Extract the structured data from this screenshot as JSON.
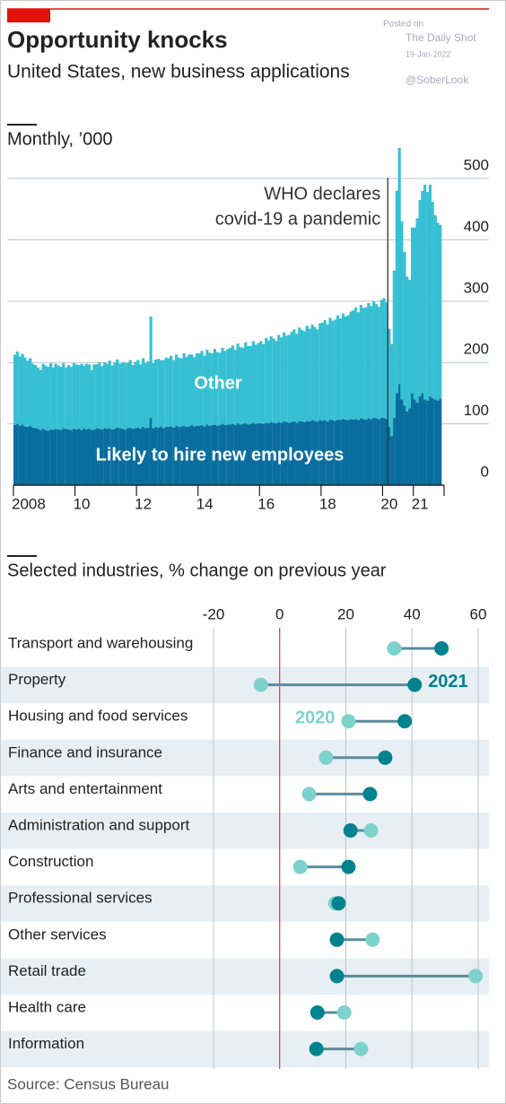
{
  "header": {
    "title": "Opportunity knocks",
    "subtitle": "United States, new business applications"
  },
  "watermark": [
    "Posted on",
    "The Daily Shot",
    "19-Jan-2022",
    "@SoberLook"
  ],
  "source": "Source: Census Bureau",
  "chart_data": [
    {
      "type": "bar",
      "stacked": true,
      "title": "Monthly, ’000",
      "grid": true,
      "x": [
        2008,
        2008.08,
        2008.17,
        2008.25,
        2008.33,
        2008.42,
        2008.5,
        2008.58,
        2008.67,
        2008.75,
        2008.83,
        2008.92,
        2009,
        2009.08,
        2009.17,
        2009.25,
        2009.33,
        2009.42,
        2009.5,
        2009.58,
        2009.67,
        2009.75,
        2009.83,
        2009.92,
        2010,
        2010.08,
        2010.17,
        2010.25,
        2010.33,
        2010.42,
        2010.5,
        2010.58,
        2010.67,
        2010.75,
        2010.83,
        2010.92,
        2011,
        2011.08,
        2011.17,
        2011.25,
        2011.33,
        2011.42,
        2011.5,
        2011.58,
        2011.67,
        2011.75,
        2011.83,
        2011.92,
        2012,
        2012.08,
        2012.17,
        2012.25,
        2012.33,
        2012.42,
        2012.5,
        2012.58,
        2012.67,
        2012.75,
        2012.83,
        2012.92,
        2013,
        2013.08,
        2013.17,
        2013.25,
        2013.33,
        2013.42,
        2013.5,
        2013.58,
        2013.67,
        2013.75,
        2013.83,
        2013.92,
        2014,
        2014.08,
        2014.17,
        2014.25,
        2014.33,
        2014.42,
        2014.5,
        2014.58,
        2014.67,
        2014.75,
        2014.83,
        2014.92,
        2015,
        2015.08,
        2015.17,
        2015.25,
        2015.33,
        2015.42,
        2015.5,
        2015.58,
        2015.67,
        2015.75,
        2015.83,
        2015.92,
        2016,
        2016.08,
        2016.17,
        2016.25,
        2016.33,
        2016.42,
        2016.5,
        2016.58,
        2016.67,
        2016.75,
        2016.83,
        2016.92,
        2017,
        2017.08,
        2017.17,
        2017.25,
        2017.33,
        2017.42,
        2017.5,
        2017.58,
        2017.67,
        2017.75,
        2017.83,
        2017.92,
        2018,
        2018.08,
        2018.17,
        2018.25,
        2018.33,
        2018.42,
        2018.5,
        2018.58,
        2018.67,
        2018.75,
        2018.83,
        2018.92,
        2019,
        2019.08,
        2019.17,
        2019.25,
        2019.33,
        2019.42,
        2019.5,
        2019.58,
        2019.67,
        2019.75,
        2019.83,
        2019.92,
        2020,
        2020.08,
        2020.17,
        2020.25,
        2020.33,
        2020.42,
        2020.5,
        2020.58,
        2020.67,
        2020.75,
        2020.83,
        2020.92,
        2021,
        2021.08,
        2021.17,
        2021.25,
        2021.33,
        2021.42,
        2021.5,
        2021.58,
        2021.67,
        2021.75,
        2021.83
      ],
      "xlim": [
        2008,
        2022
      ],
      "xticks": [
        2008,
        {
          "value": 2010,
          "label": "10"
        },
        {
          "value": 2012,
          "label": "12"
        },
        {
          "value": 2014,
          "label": "14"
        },
        {
          "value": 2016,
          "label": "16"
        },
        {
          "value": 2018,
          "label": "18"
        },
        {
          "value": 2020,
          "label": "20"
        },
        {
          "value": 2021,
          "label": "21"
        }
      ],
      "ylim": [
        0,
        560
      ],
      "yticks": [
        0,
        100,
        200,
        300,
        400,
        500
      ],
      "series": [
        {
          "name": "Likely to hire new employees",
          "color": "#0a6d9f",
          "values": [
            98,
            100,
            97,
            99,
            96,
            95,
            97,
            94,
            93,
            92,
            90,
            92,
            90,
            89,
            91,
            90,
            92,
            91,
            90,
            93,
            92,
            91,
            90,
            92,
            91,
            92,
            90,
            93,
            91,
            92,
            90,
            91,
            93,
            92,
            91,
            93,
            92,
            93,
            91,
            92,
            94,
            93,
            92,
            91,
            93,
            94,
            92,
            93,
            94,
            92,
            95,
            93,
            94,
            110,
            93,
            95,
            94,
            96,
            93,
            95,
            95,
            96,
            94,
            97,
            95,
            96,
            97,
            95,
            96,
            98,
            96,
            97,
            97,
            98,
            96,
            99,
            97,
            98,
            99,
            97,
            98,
            100,
            98,
            99,
            99,
            100,
            98,
            101,
            99,
            100,
            101,
            99,
            100,
            102,
            100,
            101,
            101,
            100,
            102,
            101,
            103,
            102,
            101,
            103,
            102,
            104,
            103,
            102,
            103,
            104,
            102,
            105,
            104,
            103,
            105,
            104,
            106,
            105,
            104,
            106,
            105,
            106,
            104,
            107,
            106,
            105,
            107,
            106,
            108,
            107,
            106,
            108,
            107,
            108,
            106,
            109,
            108,
            107,
            109,
            108,
            110,
            109,
            108,
            110,
            110,
            108,
            95,
            80,
            110,
            150,
            165,
            140,
            130,
            120,
            125,
            150,
            140,
            135,
            145,
            150,
            140,
            138,
            145,
            142,
            140,
            138,
            141
          ]
        },
        {
          "name": "Other",
          "color": "#37c0d3",
          "values": [
            115,
            118,
            113,
            115,
            112,
            108,
            110,
            104,
            103,
            100,
            98,
            106,
            105,
            104,
            108,
            102,
            106,
            104,
            103,
            106,
            100,
            105,
            103,
            107,
            106,
            104,
            108,
            102,
            107,
            105,
            98,
            106,
            104,
            108,
            103,
            107,
            106,
            110,
            104,
            108,
            111,
            105,
            108,
            109,
            106,
            110,
            104,
            108,
            110,
            105,
            112,
            106,
            108,
            165,
            106,
            110,
            112,
            108,
            111,
            113,
            112,
            115,
            110,
            116,
            113,
            111,
            118,
            114,
            117,
            115,
            113,
            118,
            118,
            121,
            115,
            122,
            119,
            117,
            123,
            120,
            118,
            124,
            121,
            123,
            125,
            128,
            123,
            130,
            126,
            124,
            132,
            128,
            127,
            133,
            129,
            131,
            134,
            130,
            138,
            135,
            140,
            137,
            134,
            142,
            139,
            145,
            141,
            143,
            147,
            150,
            145,
            152,
            149,
            148,
            155,
            151,
            156,
            153,
            150,
            158,
            160,
            163,
            158,
            166,
            162,
            165,
            170,
            166,
            172,
            168,
            171,
            175,
            178,
            182,
            176,
            185,
            181,
            183,
            188,
            184,
            190,
            186,
            183,
            192,
            195,
            190,
            160,
            150,
            240,
            330,
            385,
            290,
            250,
            220,
            210,
            270,
            280,
            300,
            320,
            330,
            350,
            340,
            345,
            320,
            300,
            290,
            283
          ]
        }
      ],
      "annotation": {
        "text": [
          "WHO declares",
          "covid-19 a pandemic"
        ],
        "x": 2020.17
      }
    },
    {
      "type": "dumbbell",
      "title": "Selected industries, % change on previous year",
      "categories": [
        "Transport and warehousing",
        "Property",
        "Housing and food services",
        "Finance and insurance",
        "Arts and entertainment",
        "Administration and support",
        "Construction",
        "Professional services",
        "Other services",
        "Retail trade",
        "Health care",
        "Information"
      ],
      "xlim": [
        -20,
        60
      ],
      "xticks": [
        -20,
        0,
        20,
        40,
        60
      ],
      "series": [
        {
          "name": "2020",
          "color": "#7dd2cb",
          "values": [
            34.6,
            -5.7,
            20.8,
            14,
            8.9,
            27.6,
            6.2,
            16.8,
            28.1,
            59.2,
            19.5,
            24.6
          ]
        },
        {
          "name": "2021",
          "color": "#00838f",
          "values": [
            48.9,
            40.8,
            37.8,
            31.9,
            27.3,
            21.4,
            20.8,
            17.8,
            17.3,
            17.3,
            11.4,
            11.1
          ]
        }
      ]
    }
  ]
}
